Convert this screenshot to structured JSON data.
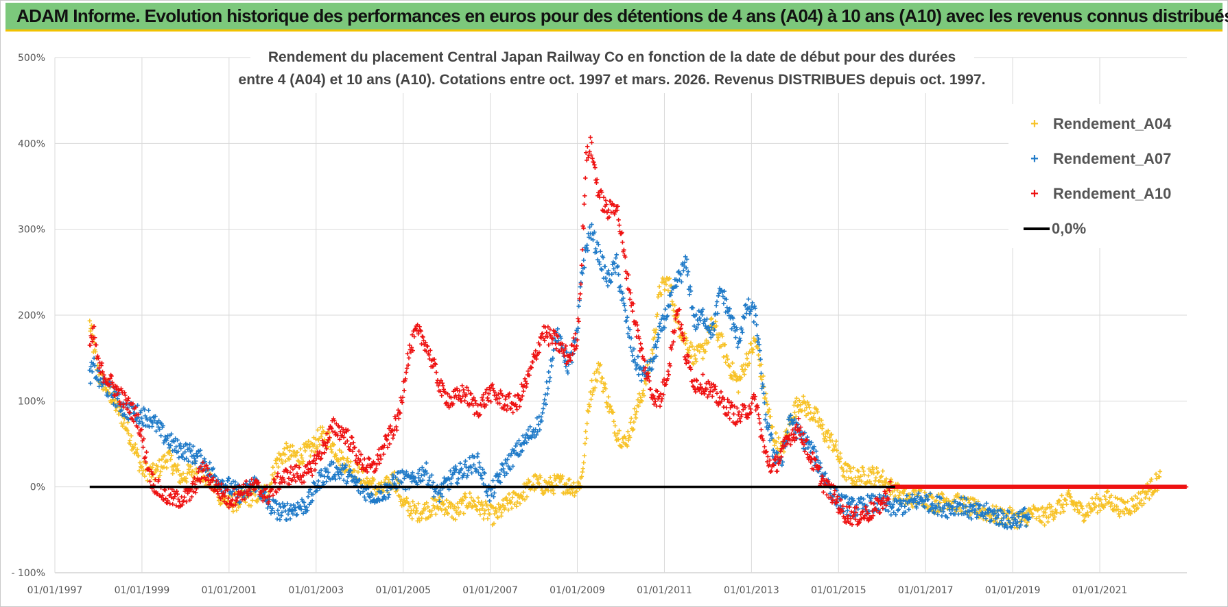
{
  "header": {
    "banner": "ADAM Informe. Evolution historique des performances en euros pour des détentions de 4 ans (A04) à 10 ans (A10) avec les revenus connus distribués"
  },
  "colors": {
    "banner_bg": "#7cc87c",
    "banner_border": "#f2c200",
    "A04": "#f7c227",
    "A07": "#1f7ac8",
    "A10": "#ee1111",
    "zero": "#000000",
    "grid": "#d9d9d9"
  },
  "chart_data": {
    "type": "scatter",
    "title_lines": [
      "Rendement du placement Central Japan Railway Co en fonction de la date de début pour des durées",
      "entre 4 (A04) et 10 ans (A10).  Cotations entre oct. 1997 et mars. 2026. Revenus DISTRIBUES depuis oct. 1997."
    ],
    "xlabel": "",
    "ylabel": "",
    "ylim": [
      -100,
      500
    ],
    "xlim": [
      1997.0,
      2023.0
    ],
    "y_ticks": [
      {
        "value": 500,
        "label": "500%"
      },
      {
        "value": 400,
        "label": "400%"
      },
      {
        "value": 300,
        "label": "300%"
      },
      {
        "value": 200,
        "label": "200%"
      },
      {
        "value": 100,
        "label": "100%"
      },
      {
        "value": 0,
        "label": "0%"
      },
      {
        "value": -100,
        "label": "- 100%"
      }
    ],
    "x_ticks": [
      {
        "value": 1997,
        "label": "01/01/1997"
      },
      {
        "value": 1999,
        "label": "01/01/1999"
      },
      {
        "value": 2001,
        "label": "01/01/2001"
      },
      {
        "value": 2003,
        "label": "01/01/2003"
      },
      {
        "value": 2005,
        "label": "01/01/2005"
      },
      {
        "value": 2007,
        "label": "01/01/2007"
      },
      {
        "value": 2009,
        "label": "01/01/2009"
      },
      {
        "value": 2011,
        "label": "01/01/2011"
      },
      {
        "value": 2013,
        "label": "01/01/2013"
      },
      {
        "value": 2015,
        "label": "01/01/2015"
      },
      {
        "value": 2017,
        "label": "01/01/2017"
      },
      {
        "value": 2019,
        "label": "01/01/2019"
      },
      {
        "value": 2021,
        "label": "01/01/2021"
      }
    ],
    "legend": [
      "Rendement_A04",
      "Rendement_A07",
      "Rendement_A10",
      "0,0%"
    ],
    "legend_position": "top-right",
    "series": [
      {
        "name": "Rendement_A04",
        "x": [
          1997.8,
          1997.9,
          1998.0,
          1998.2,
          1998.4,
          1998.6,
          1998.8,
          1999.0,
          1999.3,
          1999.6,
          1999.9,
          2000.2,
          2000.5,
          2000.8,
          2001.0,
          2001.3,
          2001.6,
          2001.9,
          2002.1,
          2002.3,
          2002.6,
          2002.9,
          2003.1,
          2003.3,
          2003.6,
          2003.9,
          2004.2,
          2004.5,
          2004.8,
          2005.0,
          2005.3,
          2005.6,
          2005.9,
          2006.2,
          2006.5,
          2006.8,
          2007.1,
          2007.4,
          2007.7,
          2008.0,
          2008.3,
          2008.6,
          2008.9,
          2009.0,
          2009.1,
          2009.3,
          2009.5,
          2009.7,
          2009.9,
          2010.1,
          2010.3,
          2010.5,
          2010.7,
          2010.9,
          2011.1,
          2011.3,
          2011.5,
          2011.7,
          2011.9,
          2012.1,
          2012.3,
          2012.5,
          2012.7,
          2012.9,
          2013.1,
          2013.3,
          2013.5,
          2013.7,
          2013.9,
          2014.1,
          2014.3,
          2014.5,
          2014.7,
          2014.9,
          2015.1,
          2015.4,
          2015.7,
          2016.0,
          2016.3,
          2016.6,
          2016.9,
          2017.2,
          2017.5,
          2017.8,
          2018.1,
          2018.4,
          2018.7,
          2019.0,
          2019.2,
          2019.4,
          2019.7,
          2020.0,
          2020.3,
          2020.6,
          2020.9,
          2021.2,
          2021.5,
          2021.8,
          2022.0,
          2022.2,
          2022.4
        ],
        "y": [
          190,
          160,
          130,
          115,
          95,
          75,
          50,
          20,
          15,
          35,
          10,
          20,
          10,
          -10,
          -20,
          -15,
          -10,
          -5,
          30,
          40,
          35,
          45,
          60,
          55,
          30,
          20,
          5,
          -5,
          10,
          -20,
          -30,
          -25,
          -20,
          -30,
          -15,
          -25,
          -35,
          -20,
          -10,
          5,
          0,
          5,
          0,
          0,
          10,
          110,
          140,
          100,
          65,
          50,
          80,
          110,
          150,
          230,
          240,
          190,
          170,
          150,
          160,
          190,
          170,
          140,
          120,
          150,
          170,
          110,
          60,
          40,
          80,
          100,
          90,
          80,
          60,
          50,
          20,
          10,
          15,
          10,
          -5,
          -15,
          -10,
          -20,
          -15,
          -20,
          -25,
          -30,
          -35,
          -35,
          -40,
          -30,
          -35,
          -25,
          -15,
          -30,
          -20,
          -15,
          -25,
          -20,
          -10,
          0,
          10
        ]
      },
      {
        "name": "Rendement_A07",
        "x": [
          1997.8,
          1997.9,
          1998.0,
          1998.3,
          1998.6,
          1998.9,
          1999.2,
          1999.5,
          1999.8,
          2000.1,
          2000.4,
          2000.7,
          2001.0,
          2001.3,
          2001.6,
          2001.9,
          2002.2,
          2002.5,
          2002.8,
          2003.1,
          2003.4,
          2003.7,
          2004.0,
          2004.3,
          2004.6,
          2004.9,
          2005.2,
          2005.5,
          2005.8,
          2006.1,
          2006.4,
          2006.7,
          2007.0,
          2007.3,
          2007.6,
          2007.9,
          2008.2,
          2008.5,
          2008.8,
          2009.0,
          2009.1,
          2009.3,
          2009.5,
          2009.7,
          2009.9,
          2010.1,
          2010.3,
          2010.5,
          2010.7,
          2010.9,
          2011.1,
          2011.3,
          2011.5,
          2011.7,
          2011.9,
          2012.1,
          2012.3,
          2012.5,
          2012.7,
          2012.9,
          2013.1,
          2013.3,
          2013.5,
          2013.7,
          2013.9,
          2014.1,
          2014.3,
          2014.5,
          2014.7,
          2014.9,
          2015.1,
          2015.4,
          2015.7,
          2016.0,
          2016.3,
          2016.6,
          2016.9,
          2017.2,
          2017.5,
          2017.8,
          2018.1,
          2018.4,
          2018.7,
          2019.0,
          2019.2,
          2019.4
        ],
        "y": [
          130,
          140,
          125,
          110,
          90,
          85,
          80,
          60,
          45,
          40,
          30,
          10,
          0,
          -10,
          5,
          -20,
          -30,
          -25,
          -20,
          10,
          20,
          15,
          0,
          -10,
          -5,
          10,
          5,
          20,
          -10,
          10,
          20,
          30,
          -10,
          20,
          40,
          60,
          80,
          180,
          140,
          175,
          250,
          300,
          270,
          240,
          260,
          200,
          150,
          130,
          140,
          180,
          210,
          240,
          260,
          190,
          200,
          180,
          230,
          200,
          170,
          210,
          200,
          90,
          40,
          30,
          80,
          60,
          50,
          30,
          10,
          -10,
          -20,
          -25,
          -20,
          -20,
          -25,
          -20,
          -15,
          -20,
          -25,
          -20,
          -30,
          -30,
          -35,
          -40,
          -35,
          -35
        ]
      },
      {
        "name": "Rendement_A10",
        "x": [
          1997.8,
          1997.9,
          1998.0,
          1998.3,
          1998.6,
          1998.9,
          1999.2,
          1999.5,
          1999.8,
          2000.1,
          2000.4,
          2000.7,
          2001.0,
          2001.3,
          2001.6,
          2001.9,
          2002.2,
          2002.5,
          2002.8,
          2003.1,
          2003.4,
          2003.7,
          2004.0,
          2004.3,
          2004.6,
          2004.9,
          2005.1,
          2005.3,
          2005.5,
          2005.7,
          2005.9,
          2006.1,
          2006.4,
          2006.7,
          2007.0,
          2007.3,
          2007.6,
          2007.9,
          2008.2,
          2008.5,
          2008.8,
          2009.0,
          2009.1,
          2009.2,
          2009.3,
          2009.5,
          2009.7,
          2009.9,
          2010.1,
          2010.3,
          2010.5,
          2010.7,
          2010.9,
          2011.1,
          2011.3,
          2011.5,
          2011.7,
          2011.9,
          2012.1,
          2012.3,
          2012.5,
          2012.7,
          2012.9,
          2013.1,
          2013.3,
          2013.5,
          2013.7,
          2013.9,
          2014.1,
          2014.3,
          2014.5,
          2014.7,
          2014.9,
          2015.1,
          2015.4,
          2015.7,
          2016.0,
          2016.2,
          2016.5,
          2017.0,
          2017.5,
          2018.0,
          2018.5,
          2019.0,
          2019.5,
          2020.0,
          2020.5,
          2021.0,
          2021.5,
          2022.0,
          2022.5,
          2023.0
        ],
        "y": [
          160,
          180,
          140,
          120,
          100,
          80,
          10,
          -10,
          -15,
          -10,
          20,
          0,
          -15,
          -5,
          0,
          -10,
          10,
          15,
          15,
          40,
          70,
          60,
          30,
          20,
          50,
          80,
          150,
          180,
          170,
          140,
          110,
          100,
          110,
          90,
          110,
          100,
          95,
          130,
          180,
          170,
          150,
          175,
          260,
          380,
          400,
          340,
          320,
          330,
          260,
          200,
          150,
          110,
          100,
          140,
          210,
          150,
          120,
          120,
          110,
          100,
          90,
          80,
          90,
          100,
          40,
          20,
          40,
          60,
          70,
          40,
          20,
          0,
          -10,
          -30,
          -35,
          -30,
          -20,
          0,
          0,
          0,
          0,
          0,
          0,
          0,
          0,
          0,
          0,
          0,
          0,
          0,
          0,
          0
        ]
      },
      {
        "name": "0,0%",
        "x": [
          1997.8,
          2016.3
        ],
        "y": [
          0,
          0
        ]
      }
    ]
  }
}
